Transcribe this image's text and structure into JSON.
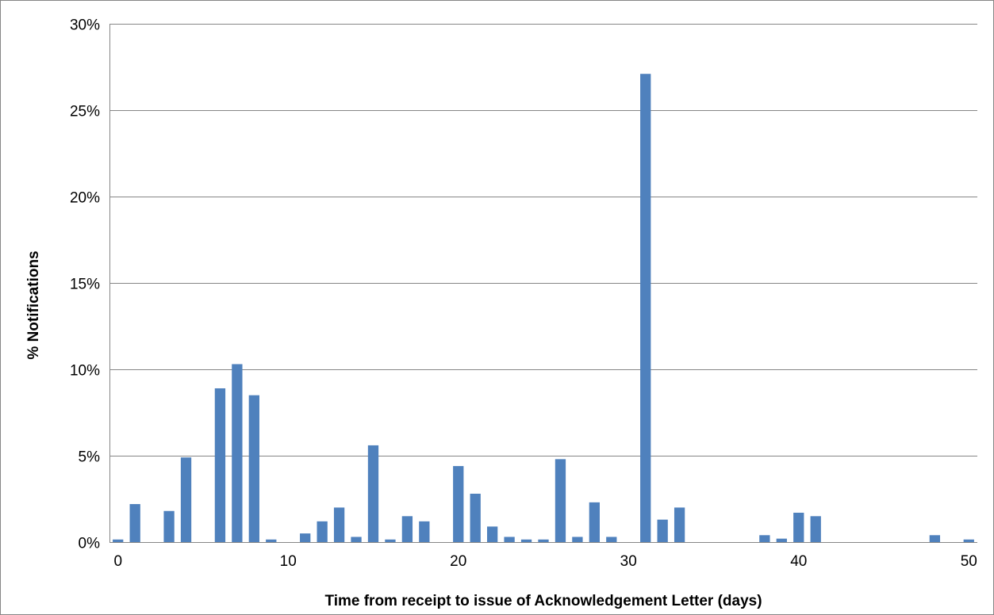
{
  "chart_data": {
    "type": "bar",
    "title": "",
    "xlabel": "Time from receipt to issue of Acknowledgement Letter (days)",
    "ylabel": "% Notifications",
    "xlim": [
      -0.5,
      50.5
    ],
    "ylim": [
      0,
      30
    ],
    "x_ticks": [
      0,
      10,
      20,
      30,
      40,
      50
    ],
    "y_ticks": [
      0,
      5,
      10,
      15,
      20,
      25,
      30
    ],
    "y_tick_labels": [
      "0%",
      "5%",
      "10%",
      "15%",
      "20%",
      "25%",
      "30%"
    ],
    "grid": true,
    "legend": "none",
    "bar_color": "#4F81BD",
    "x": [
      0,
      1,
      2,
      3,
      4,
      5,
      6,
      7,
      8,
      9,
      10,
      11,
      12,
      13,
      14,
      15,
      16,
      17,
      18,
      19,
      20,
      21,
      22,
      23,
      24,
      25,
      26,
      27,
      28,
      29,
      30,
      31,
      32,
      33,
      34,
      35,
      36,
      37,
      38,
      39,
      40,
      41,
      42,
      43,
      44,
      45,
      46,
      47,
      48,
      49,
      50
    ],
    "values": [
      0.15,
      2.2,
      0,
      1.8,
      4.9,
      0,
      8.9,
      10.3,
      8.5,
      0.15,
      0,
      0.5,
      1.2,
      2.0,
      0.3,
      5.6,
      0.15,
      1.5,
      1.2,
      0,
      4.4,
      2.8,
      0.9,
      0.3,
      0.15,
      0.15,
      4.8,
      0.3,
      2.3,
      0.3,
      0,
      27.1,
      1.3,
      2.0,
      0,
      0,
      0,
      0,
      0.4,
      0.2,
      1.7,
      1.5,
      0,
      0,
      0,
      0,
      0,
      0,
      0.4,
      0,
      0.15
    ]
  }
}
